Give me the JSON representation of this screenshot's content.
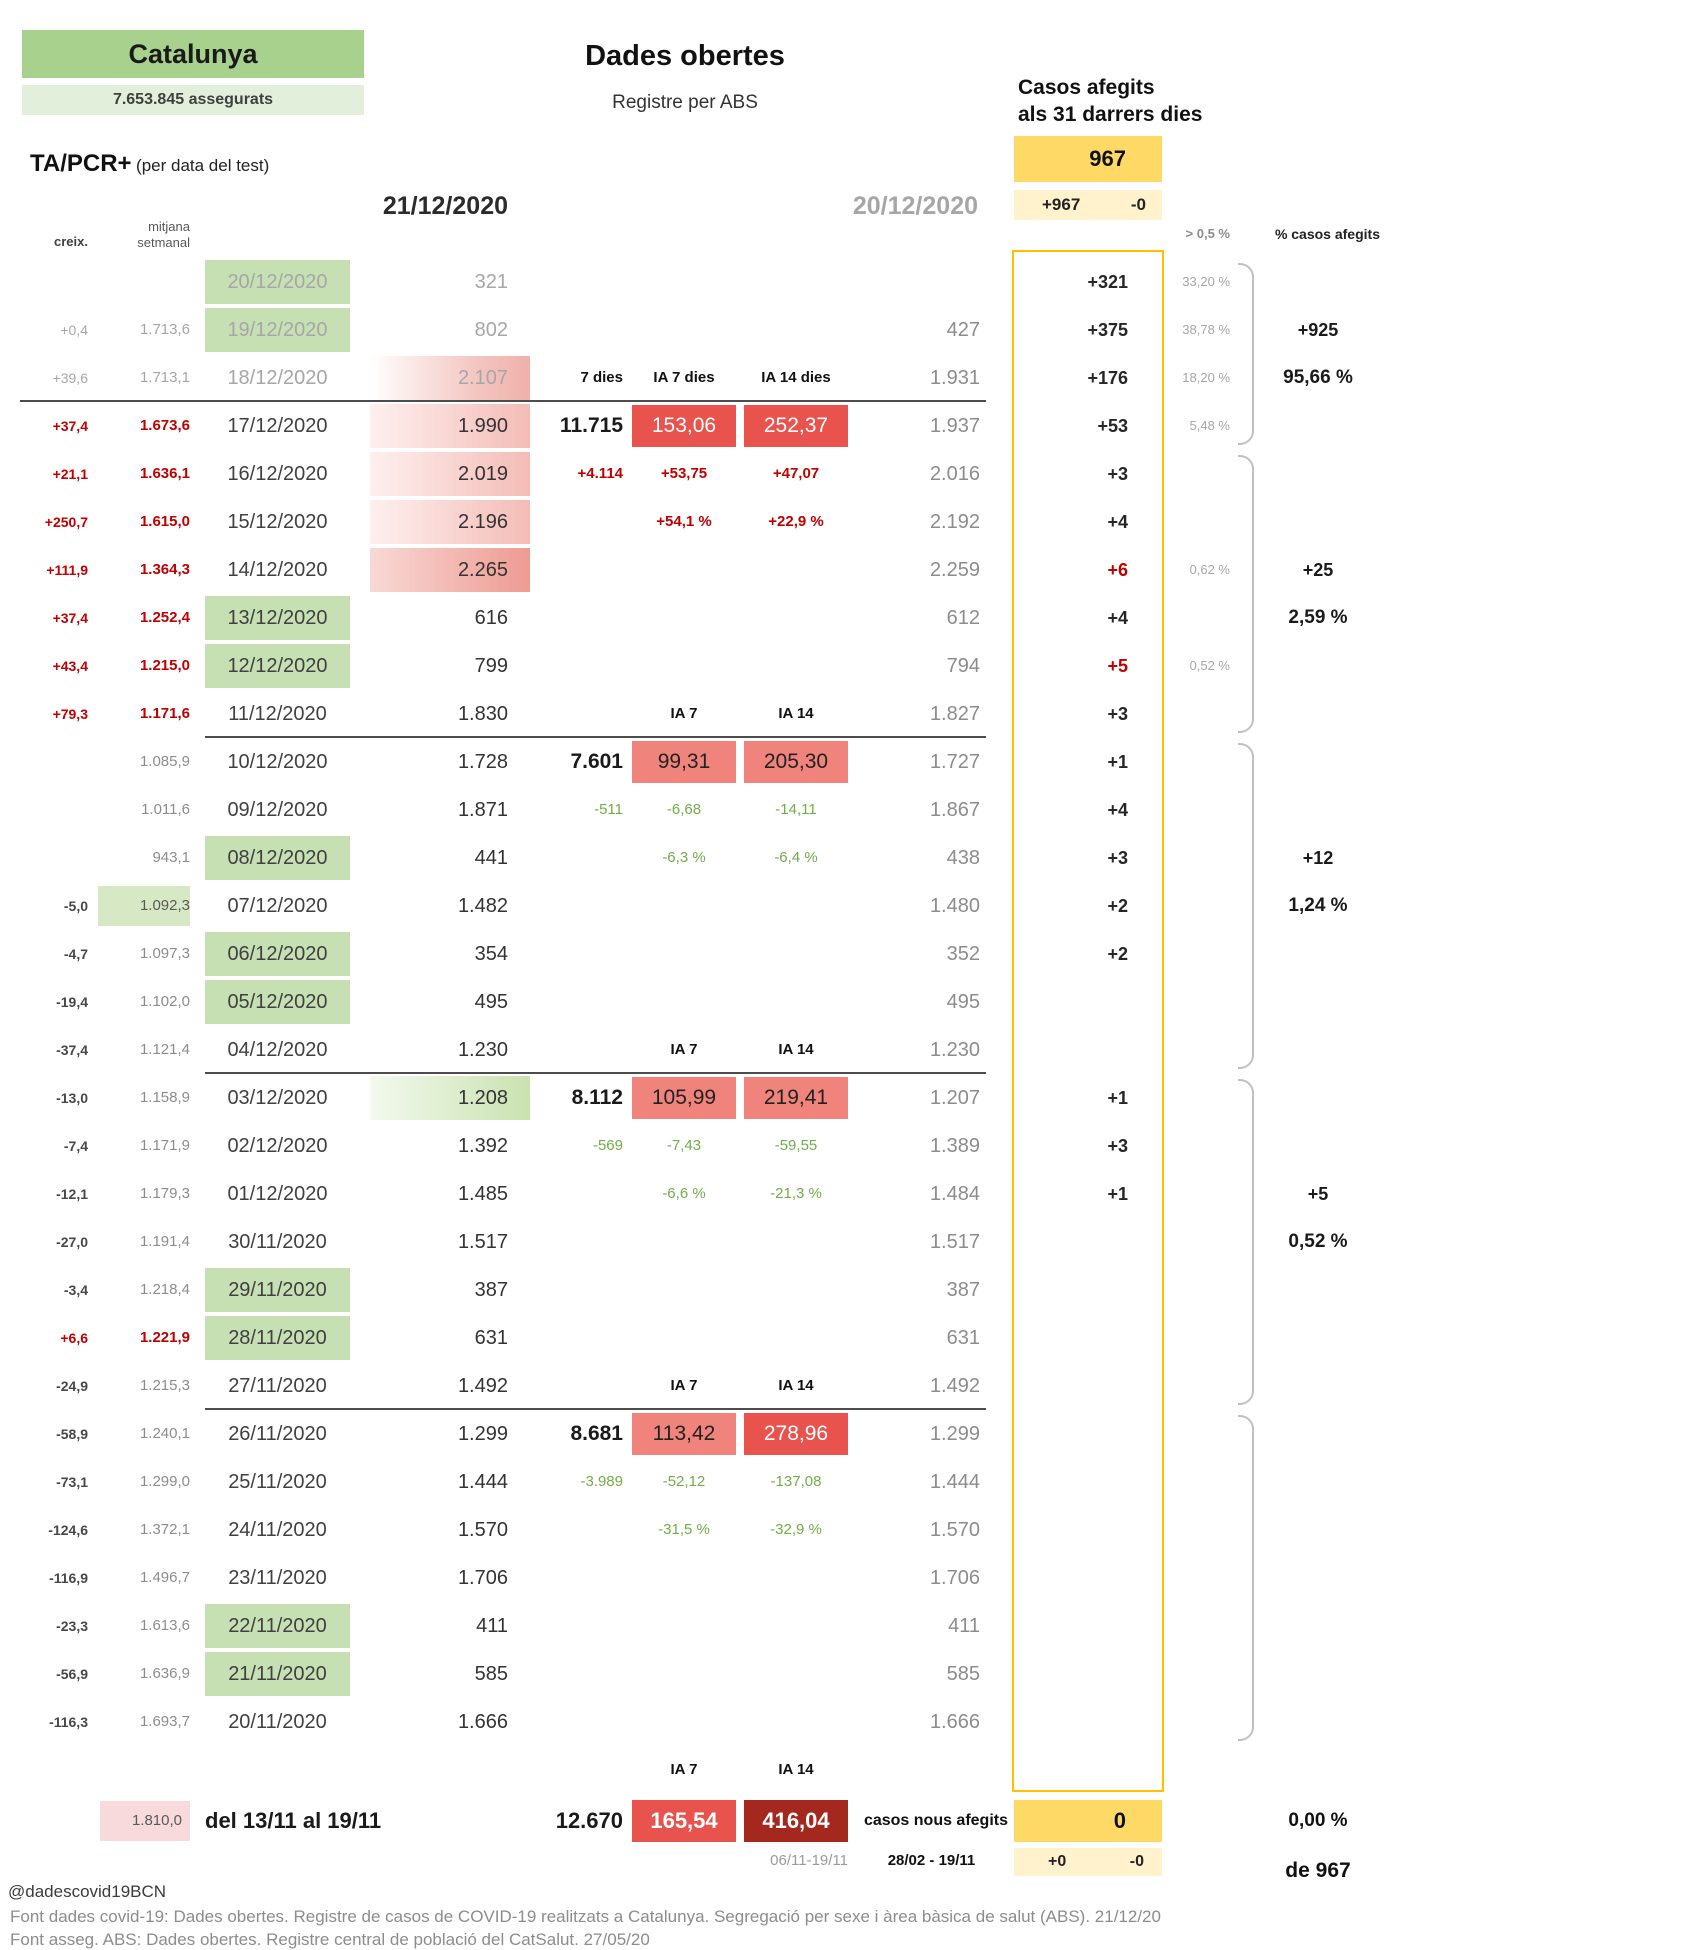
{
  "header": {
    "region": "Catalunya",
    "insured": "7.653.845 assegurats",
    "title": "Dades obertes",
    "subtitle": "Registre per ABS",
    "cases_added_line1": "Casos afegits",
    "cases_added_line2": "als 31 darrers dies",
    "cases_added_total": "967",
    "cases_added_plus": "+967",
    "cases_added_minus": "-0",
    "test_label": "TA/PCR+",
    "test_label_suffix": "(per data del test)",
    "date_current": "21/12/2020",
    "date_previous": "20/12/2020",
    "threshold_label": "> 0,5 %",
    "pct_cases_label": "% casos afegits",
    "col_creix": "creix.",
    "col_mitjana_1": "mitjana",
    "col_mitjana_2": "setmanal"
  },
  "chart_data": {
    "type": "table",
    "title": "Dades obertes - Registre per ABS - Catalunya - TA/PCR+ (per data del test)",
    "columns": [
      "creix.",
      "mitjana setmanal",
      "data",
      "21/12/2020",
      "7 dies",
      "IA 7 dies",
      "IA 14 dies",
      "20/12/2020",
      "casos afegits",
      "> 0,5 %"
    ],
    "rows": [
      {
        "date": "20/12/2020",
        "date_cls": "bg-green txt-muted",
        "val": "321",
        "val_cls": "txt-muted",
        "diff": "+321",
        "pct": "33,20 %"
      },
      {
        "creix": "+0,4",
        "creix_cls": "txt-muted",
        "mitjana": "1.713,6",
        "mitjana_cls": "txt-muted",
        "date": "19/12/2020",
        "date_cls": "bg-green txt-muted",
        "val": "802",
        "val_cls": "txt-muted",
        "prev": "427",
        "diff": "+375",
        "pct": "38,78 %"
      },
      {
        "creix": "+39,6",
        "creix_cls": "txt-muted",
        "mitjana": "1.713,1",
        "mitjana_cls": "txt-muted",
        "date": "18/12/2020",
        "date_cls": "txt-muted",
        "val": "2.107",
        "val_cls": "txt-muted bg-pink-grad",
        "agg": "7 dies",
        "agg_cls": "col-hdr",
        "ia7": "IA 7 dies",
        "ia7_cls": "col-hdr",
        "ia14": "IA 14 dies",
        "ia14_cls": "col-hdr",
        "prev": "1.931",
        "diff": "+176",
        "pct": "18,20 %",
        "sep": "full"
      },
      {
        "creix": "+37,4",
        "creix_cls": "txt-red",
        "mitjana": "1.673,6",
        "mitjana_cls": "txt-red",
        "date": "17/12/2020",
        "val": "1.990",
        "val_cls": "bg-pink",
        "agg": "11.715",
        "agg_cls": "agg-big",
        "ia7": "153,06",
        "ia7_cls": "ia-red",
        "ia14": "252,37",
        "ia14_cls": "ia-red",
        "prev": "1.937",
        "diff": "+53",
        "pct": "5,48 %"
      },
      {
        "creix": "+21,1",
        "creix_cls": "txt-red",
        "mitjana": "1.636,1",
        "mitjana_cls": "txt-red",
        "date": "16/12/2020",
        "val": "2.019",
        "val_cls": "bg-pink",
        "agg": "+4.114",
        "agg_cls": "small-pos",
        "ia7": "+53,75",
        "ia7_cls": "small-pos",
        "ia14": "+47,07",
        "ia14_cls": "small-pos",
        "prev": "2.016",
        "diff": "+3"
      },
      {
        "creix": "+250,7",
        "creix_cls": "txt-red",
        "mitjana": "1.615,0",
        "mitjana_cls": "txt-red",
        "date": "15/12/2020",
        "val": "2.196",
        "val_cls": "bg-pink",
        "ia7": "+54,1 %",
        "ia7_cls": "small-pos",
        "ia14": "+22,9 %",
        "ia14_cls": "small-pos",
        "prev": "2.192",
        "diff": "+4"
      },
      {
        "creix": "+111,9",
        "creix_cls": "txt-red",
        "mitjana": "1.364,3",
        "mitjana_cls": "txt-red",
        "date": "14/12/2020",
        "val": "2.265",
        "val_cls": "bg-pink-strong",
        "prev": "2.259",
        "diff": "+6",
        "diff_cls": "txt-red",
        "pct": "0,62 %"
      },
      {
        "creix": "+37,4",
        "creix_cls": "txt-red",
        "mitjana": "1.252,4",
        "mitjana_cls": "txt-red",
        "date": "13/12/2020",
        "date_cls": "bg-green",
        "val": "616",
        "prev": "612",
        "diff": "+4"
      },
      {
        "creix": "+43,4",
        "creix_cls": "txt-red",
        "mitjana": "1.215,0",
        "mitjana_cls": "txt-red",
        "date": "12/12/2020",
        "date_cls": "bg-green",
        "val": "799",
        "prev": "794",
        "diff": "+5",
        "diff_cls": "txt-red",
        "pct": "0,52 %"
      },
      {
        "creix": "+79,3",
        "creix_cls": "txt-red",
        "mitjana": "1.171,6",
        "mitjana_cls": "txt-red",
        "date": "11/12/2020",
        "val": "1.830",
        "ia7": "IA 7",
        "ia7_cls": "col-hdr",
        "ia14": "IA 14",
        "ia14_cls": "col-hdr",
        "prev": "1.827",
        "diff": "+3",
        "sep": "part"
      },
      {
        "mitjana": "1.085,9",
        "date": "10/12/2020",
        "val": "1.728",
        "agg": "7.601",
        "agg_cls": "agg-big",
        "ia7": "99,31",
        "ia7_cls": "ia-salmon",
        "ia14": "205,30",
        "ia14_cls": "ia-salmon",
        "prev": "1.727",
        "diff": "+1"
      },
      {
        "mitjana": "1.011,6",
        "date": "09/12/2020",
        "val": "1.871",
        "agg": "-511",
        "agg_cls": "small-neg",
        "ia7": "-6,68",
        "ia7_cls": "small-neg",
        "ia14": "-14,11",
        "ia14_cls": "small-neg",
        "prev": "1.867",
        "diff": "+4"
      },
      {
        "mitjana": "943,1",
        "date": "08/12/2020",
        "date_cls": "bg-green",
        "val": "441",
        "ia7": "-6,3 %",
        "ia7_cls": "small-neg",
        "ia14": "-6,4 %",
        "ia14_cls": "small-neg",
        "prev": "438",
        "diff": "+3"
      },
      {
        "creix": "-5,0",
        "mitjana": "1.092,3",
        "mitjana_cls": "bg-green-cell",
        "date": "07/12/2020",
        "val": "1.482",
        "prev": "1.480",
        "diff": "+2"
      },
      {
        "creix": "-4,7",
        "mitjana": "1.097,3",
        "date": "06/12/2020",
        "date_cls": "bg-green",
        "val": "354",
        "prev": "352",
        "diff": "+2"
      },
      {
        "creix": "-19,4",
        "mitjana": "1.102,0",
        "date": "05/12/2020",
        "date_cls": "bg-green",
        "val": "495",
        "prev": "495"
      },
      {
        "creix": "-37,4",
        "mitjana": "1.121,4",
        "date": "04/12/2020",
        "val": "1.230",
        "ia7": "IA 7",
        "ia7_cls": "col-hdr",
        "ia14": "IA 14",
        "ia14_cls": "col-hdr",
        "prev": "1.230",
        "sep": "part"
      },
      {
        "creix": "-13,0",
        "mitjana": "1.158,9",
        "date": "03/12/2020",
        "val": "1.208",
        "val_cls": "bg-green-grad",
        "agg": "8.112",
        "agg_cls": "agg-big",
        "ia7": "105,99",
        "ia7_cls": "ia-salmon",
        "ia14": "219,41",
        "ia14_cls": "ia-salmon",
        "prev": "1.207",
        "diff": "+1"
      },
      {
        "creix": "-7,4",
        "mitjana": "1.171,9",
        "date": "02/12/2020",
        "val": "1.392",
        "agg": "-569",
        "agg_cls": "small-neg",
        "ia7": "-7,43",
        "ia7_cls": "small-neg",
        "ia14": "-59,55",
        "ia14_cls": "small-neg",
        "prev": "1.389",
        "diff": "+3"
      },
      {
        "creix": "-12,1",
        "mitjana": "1.179,3",
        "date": "01/12/2020",
        "val": "1.485",
        "ia7": "-6,6 %",
        "ia7_cls": "small-neg",
        "ia14": "-21,3 %",
        "ia14_cls": "small-neg",
        "prev": "1.484",
        "diff": "+1"
      },
      {
        "creix": "-27,0",
        "mitjana": "1.191,4",
        "date": "30/11/2020",
        "val": "1.517",
        "prev": "1.517"
      },
      {
        "creix": "-3,4",
        "mitjana": "1.218,4",
        "date": "29/11/2020",
        "date_cls": "bg-green",
        "val": "387",
        "prev": "387"
      },
      {
        "creix": "+6,6",
        "creix_cls": "txt-red",
        "mitjana": "1.221,9",
        "mitjana_cls": "txt-red",
        "date": "28/11/2020",
        "date_cls": "bg-green",
        "val": "631",
        "prev": "631"
      },
      {
        "creix": "-24,9",
        "mitjana": "1.215,3",
        "date": "27/11/2020",
        "val": "1.492",
        "ia7": "IA 7",
        "ia7_cls": "col-hdr",
        "ia14": "IA 14",
        "ia14_cls": "col-hdr",
        "prev": "1.492",
        "sep": "part"
      },
      {
        "creix": "-58,9",
        "mitjana": "1.240,1",
        "date": "26/11/2020",
        "val": "1.299",
        "agg": "8.681",
        "agg_cls": "agg-big",
        "ia7": "113,42",
        "ia7_cls": "ia-salmon",
        "ia14": "278,96",
        "ia14_cls": "ia-red",
        "prev": "1.299"
      },
      {
        "creix": "-73,1",
        "mitjana": "1.299,0",
        "date": "25/11/2020",
        "val": "1.444",
        "agg": "-3.989",
        "agg_cls": "small-neg",
        "ia7": "-52,12",
        "ia7_cls": "small-neg",
        "ia14": "-137,08",
        "ia14_cls": "small-neg",
        "prev": "1.444"
      },
      {
        "creix": "-124,6",
        "mitjana": "1.372,1",
        "date": "24/11/2020",
        "val": "1.570",
        "ia7": "-31,5 %",
        "ia7_cls": "small-neg",
        "ia14": "-32,9 %",
        "ia14_cls": "small-neg",
        "prev": "1.570"
      },
      {
        "creix": "-116,9",
        "mitjana": "1.496,7",
        "date": "23/11/2020",
        "val": "1.706",
        "prev": "1.706"
      },
      {
        "creix": "-23,3",
        "mitjana": "1.613,6",
        "date": "22/11/2020",
        "date_cls": "bg-green",
        "val": "411",
        "prev": "411"
      },
      {
        "creix": "-56,9",
        "mitjana": "1.636,9",
        "date": "21/11/2020",
        "date_cls": "bg-green",
        "val": "585",
        "prev": "585"
      },
      {
        "creix": "-116,3",
        "mitjana": "1.693,7",
        "date": "20/11/2020",
        "val": "1.666",
        "prev": "1.666"
      }
    ],
    "totals": {
      "ia7_label": "IA 7",
      "ia14_label": "IA 14",
      "mitjana": "1.810,0",
      "range_label": "del 13/11 al 19/11",
      "sum7": "12.670",
      "ia7": "165,54",
      "ia14": "416,04",
      "ia_range": "06/11-19/11",
      "new_cases_label": "casos nous afegits",
      "new_cases_range": "28/02 - 19/11",
      "new_cases": "0",
      "plus": "+0",
      "minus": "-0",
      "pct": "0,00 %",
      "of_total": "de 967"
    }
  },
  "annotations": {
    "brackets": [
      {
        "from": 0,
        "to": 3,
        "plus": "+925",
        "plus_row": 1,
        "pct": "95,66 %",
        "pct_row": 2
      },
      {
        "from": 4,
        "to": 9,
        "plus": "+25",
        "plus_row": 6,
        "pct": "2,59 %",
        "pct_row": 7
      },
      {
        "from": 10,
        "to": 16,
        "plus": "+12",
        "plus_row": 12,
        "pct": "1,24 %",
        "pct_row": 13
      },
      {
        "from": 17,
        "to": 23,
        "plus": "+5",
        "plus_row": 19,
        "pct": "0,52 %",
        "pct_row": 20
      },
      {
        "from": 24,
        "to": 30
      }
    ]
  },
  "footer": {
    "handle": "@dadescovid19BCN",
    "line1": "Font dades covid-19: Dades obertes. Registre de casos de COVID-19 realitzats a Catalunya. Segregació per sexe i àrea bàsica de salut (ABS). 21/12/20",
    "line2": "Font asseg. ABS: Dades obertes. Registre central de població del CatSalut. 27/05/20"
  },
  "colors": {
    "green_header": "#a9d18e",
    "green_light": "#e2efda",
    "green_cell": "#c6e0b4",
    "yellow": "#ffd966",
    "yellow_light": "#fff2cc",
    "yellow_border": "#ffc000",
    "red_text": "#c00000",
    "green_text": "#70ad47",
    "ia_red": "#e8534e",
    "ia_salmon": "#f0837b",
    "ia_dark": "#a5281f",
    "muted_text": "#a6a6a6"
  }
}
